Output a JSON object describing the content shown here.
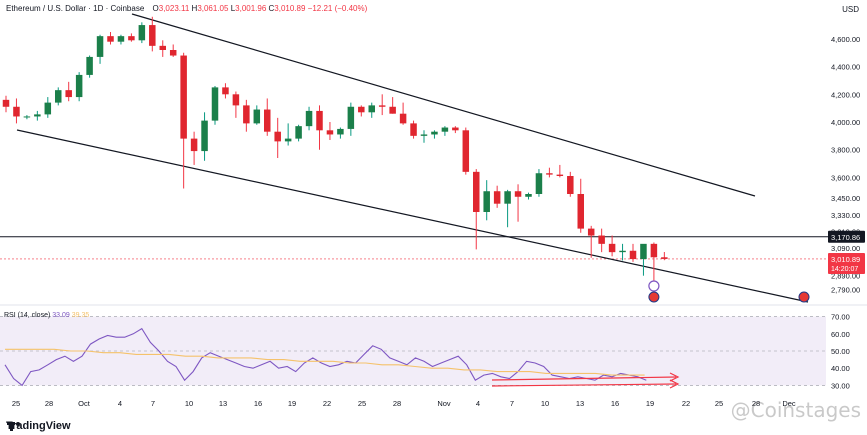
{
  "header": {
    "symbol": "Ethereum / U.S. Dollar · 1D · Coinbase",
    "o_label": "O",
    "o_value": "3,023.11",
    "h_label": "H",
    "h_value": "3,061.05",
    "l_label": "L",
    "l_value": "3,001.96",
    "c_label": "C",
    "c_value": "3,010.89",
    "change": "−12.21 (−0.40%)"
  },
  "currency": "USD",
  "price_axis": {
    "ticks": [
      {
        "v": 4600,
        "label": "4,600.00"
      },
      {
        "v": 4400,
        "label": "4,400.00"
      },
      {
        "v": 4200,
        "label": "4,200.00"
      },
      {
        "v": 4000,
        "label": "4,000.00"
      },
      {
        "v": 3800,
        "label": "3,800.00"
      },
      {
        "v": 3600,
        "label": "3,600.00"
      },
      {
        "v": 3450,
        "label": "3,450.00"
      },
      {
        "v": 3330,
        "label": "3,330.00"
      },
      {
        "v": 3210,
        "label": "3,210.00"
      },
      {
        "v": 3090,
        "label": "3,090.00"
      },
      {
        "v": 2890,
        "label": "2,890.00"
      },
      {
        "v": 2790,
        "label": "2,790.00"
      }
    ],
    "horizontal_level": {
      "value": 3170.86,
      "label": "3,170.86"
    },
    "last_price": {
      "value": 3010.89,
      "label": "3,010.89",
      "countdown": "14:20:07"
    }
  },
  "rsi": {
    "title": "RSI (14, close)",
    "value1": "33.09",
    "value2": "39.35",
    "ticks": [
      "70.00",
      "60.00",
      "50.00",
      "40.00",
      "30.00"
    ]
  },
  "x_axis": {
    "labels": [
      "25",
      "28",
      "Oct",
      "4",
      "7",
      "10",
      "13",
      "16",
      "19",
      "22",
      "25",
      "28",
      "Nov",
      "4",
      "7",
      "10",
      "13",
      "16",
      "19",
      "22",
      "25",
      "28",
      "Dec"
    ]
  },
  "branding": {
    "logo": "TradingView",
    "watermark": "@Coinstages"
  },
  "chart_data": {
    "type": "candlestick",
    "title": "",
    "xlabel": "",
    "ylabel": "",
    "ylim": [
      2700,
      4780
    ],
    "candles": [
      [
        4160,
        4190,
        4070,
        4110
      ],
      [
        4110,
        4170,
        3990,
        4040
      ],
      [
        4040,
        4050,
        4020,
        4040
      ],
      [
        4040,
        4080,
        4010,
        4055
      ],
      [
        4055,
        4180,
        4030,
        4140
      ],
      [
        4140,
        4250,
        4120,
        4230
      ],
      [
        4230,
        4290,
        4150,
        4180
      ],
      [
        4180,
        4360,
        4150,
        4340
      ],
      [
        4340,
        4480,
        4320,
        4470
      ],
      [
        4470,
        4630,
        4420,
        4620
      ],
      [
        4620,
        4650,
        4560,
        4580
      ],
      [
        4580,
        4630,
        4560,
        4620
      ],
      [
        4620,
        4640,
        4580,
        4590
      ],
      [
        4590,
        4720,
        4570,
        4700
      ],
      [
        4700,
        4760,
        4510,
        4550
      ],
      [
        4550,
        4590,
        4470,
        4520
      ],
      [
        4520,
        4560,
        4470,
        4480
      ],
      [
        4480,
        4500,
        3520,
        3880
      ],
      [
        3880,
        3930,
        3690,
        3790
      ],
      [
        3790,
        4070,
        3720,
        4010
      ],
      [
        4010,
        4260,
        3980,
        4250
      ],
      [
        4250,
        4280,
        4170,
        4200
      ],
      [
        4200,
        4220,
        4030,
        4120
      ],
      [
        4120,
        4160,
        3930,
        3990
      ],
      [
        3990,
        4120,
        3980,
        4090
      ],
      [
        4090,
        4170,
        3900,
        3930
      ],
      [
        3930,
        4030,
        3740,
        3860
      ],
      [
        3860,
        3990,
        3830,
        3880
      ],
      [
        3880,
        3980,
        3860,
        3970
      ],
      [
        3970,
        4110,
        3940,
        4080
      ],
      [
        4080,
        4120,
        3800,
        3940
      ],
      [
        3940,
        4000,
        3870,
        3910
      ],
      [
        3910,
        3960,
        3880,
        3950
      ],
      [
        3950,
        4140,
        3900,
        4110
      ],
      [
        4110,
        4120,
        4040,
        4070
      ],
      [
        4070,
        4140,
        4030,
        4120
      ],
      [
        4120,
        4200,
        4050,
        4110
      ],
      [
        4110,
        4180,
        4060,
        4060
      ],
      [
        4060,
        4140,
        3980,
        3990
      ],
      [
        3990,
        4010,
        3880,
        3900
      ],
      [
        3900,
        3940,
        3850,
        3910
      ],
      [
        3910,
        3940,
        3880,
        3930
      ],
      [
        3930,
        3970,
        3900,
        3960
      ],
      [
        3960,
        3970,
        3920,
        3940
      ],
      [
        3940,
        3960,
        3620,
        3640
      ],
      [
        3640,
        3660,
        3080,
        3350
      ],
      [
        3350,
        3580,
        3290,
        3500
      ],
      [
        3500,
        3540,
        3380,
        3410
      ],
      [
        3410,
        3510,
        3240,
        3500
      ],
      [
        3500,
        3550,
        3280,
        3460
      ],
      [
        3460,
        3490,
        3440,
        3480
      ],
      [
        3480,
        3660,
        3460,
        3630
      ],
      [
        3630,
        3670,
        3600,
        3620
      ],
      [
        3620,
        3690,
        3600,
        3610
      ],
      [
        3610,
        3640,
        3460,
        3480
      ],
      [
        3480,
        3590,
        3200,
        3230
      ],
      [
        3230,
        3250,
        3020,
        3180
      ],
      [
        3180,
        3230,
        3060,
        3120
      ],
      [
        3120,
        3180,
        3030,
        3060
      ],
      [
        3060,
        3120,
        3000,
        3070
      ],
      [
        3070,
        3120,
        2990,
        3010
      ],
      [
        3010,
        3110,
        2890,
        3120
      ],
      [
        3120,
        3130,
        2850,
        3023
      ],
      [
        3023,
        3061,
        3002,
        3011
      ]
    ],
    "rsi_ylim": [
      25,
      75
    ],
    "rsi": [
      42,
      34,
      30,
      38,
      39,
      42,
      45,
      47,
      44,
      47,
      54,
      57,
      59,
      58,
      58,
      60,
      63,
      55,
      50,
      44,
      41,
      33,
      38,
      46,
      49,
      47,
      45,
      43,
      41,
      40,
      42,
      44,
      40,
      41,
      38,
      43,
      46,
      43,
      41,
      42,
      44,
      43,
      48,
      53,
      51,
      46,
      44,
      42,
      46,
      44,
      41,
      43,
      45,
      47,
      42,
      33,
      36,
      37,
      35,
      34,
      38,
      44,
      43,
      41,
      36,
      35,
      34,
      35,
      34,
      33,
      36,
      35,
      37,
      36,
      35,
      33
    ],
    "rsi_ma": [
      51,
      51,
      51,
      51,
      50,
      50,
      49,
      49,
      48,
      48,
      48,
      47,
      47,
      46,
      46,
      46,
      45,
      45,
      44,
      44,
      44,
      43,
      43,
      42,
      42,
      41,
      40,
      40,
      39,
      39,
      38,
      38,
      38,
      37,
      37,
      37,
      37,
      36,
      36,
      36
    ],
    "upper_trendline": [
      [
        132,
        14
      ],
      [
        755,
        196
      ]
    ],
    "lower_trendline": [
      [
        17,
        130
      ],
      [
        808,
        302
      ]
    ]
  }
}
